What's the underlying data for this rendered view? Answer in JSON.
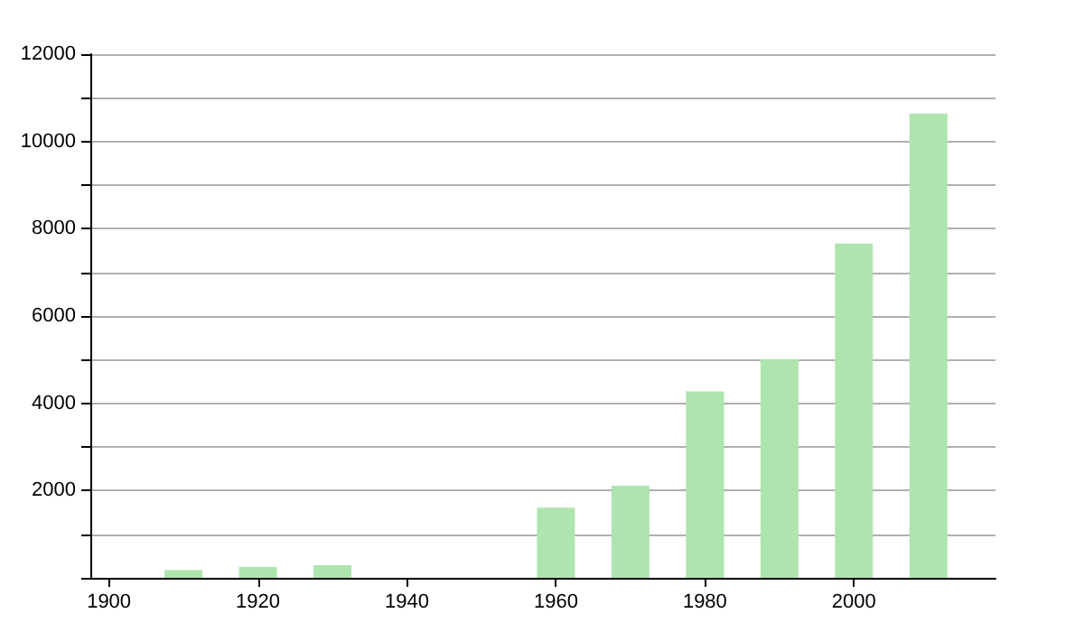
{
  "chart_data": {
    "type": "bar",
    "x": [
      1910,
      1920,
      1930,
      1960,
      1970,
      1980,
      1990,
      2000,
      2010
    ],
    "values": [
      180,
      250,
      290,
      1610,
      2110,
      4270,
      5010,
      7660,
      10640
    ],
    "color": "#aee5ae",
    "xlim": [
      1897.5,
      2019
    ],
    "xticks": [
      1900,
      1920,
      1940,
      1960,
      1980,
      2000
    ],
    "ylim": [
      0,
      12000
    ],
    "yticks": [
      {
        "value": 0,
        "label": null
      },
      {
        "value": 1000,
        "label": null
      },
      2000,
      {
        "value": 3000,
        "label": null
      },
      4000,
      {
        "value": 5000,
        "label": null
      },
      6000,
      {
        "value": 7000,
        "label": null
      },
      8000,
      {
        "value": 9000,
        "label": null
      },
      10000,
      {
        "value": 11000,
        "label": null
      },
      12000
    ],
    "grid": "y"
  }
}
